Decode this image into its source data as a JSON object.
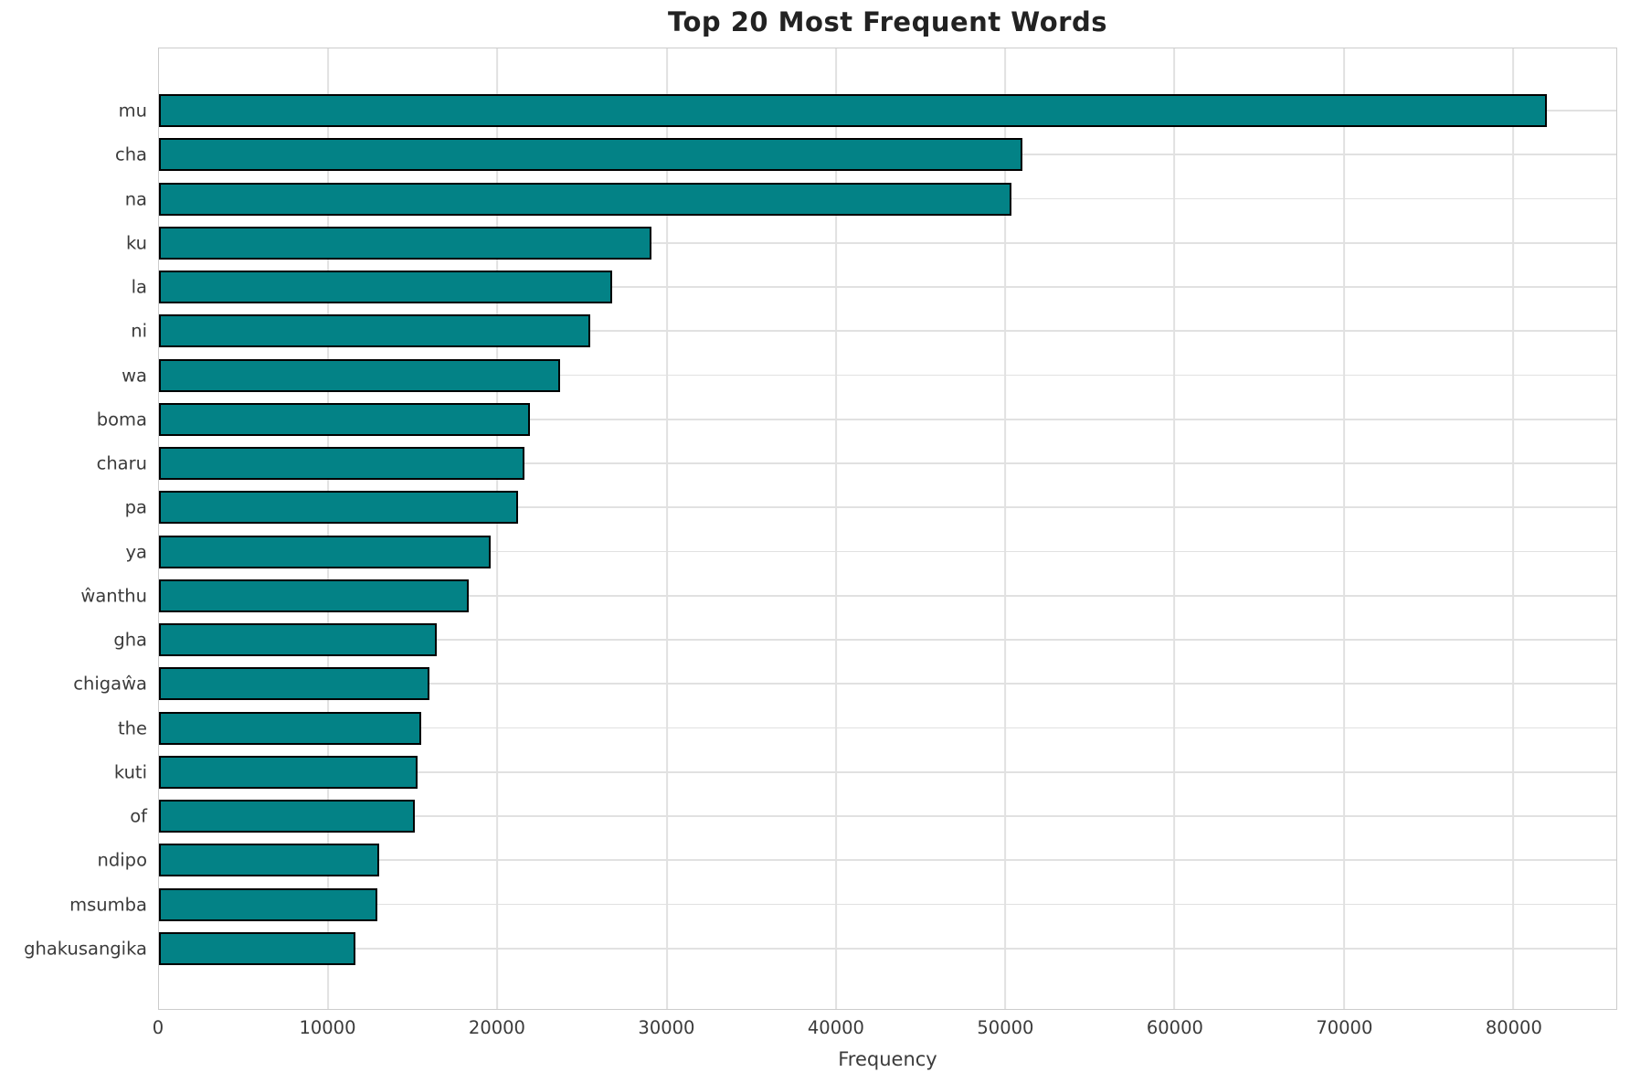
{
  "title": "Top 20 Most Frequent Words",
  "xlabel": "Frequency",
  "chart_data": {
    "type": "bar",
    "orientation": "horizontal",
    "title": "Top 20 Most Frequent Words",
    "xlabel": "Frequency",
    "ylabel": "",
    "categories": [
      "mu",
      "cha",
      "na",
      "ku",
      "la",
      "ni",
      "wa",
      "boma",
      "charu",
      "pa",
      "ya",
      "ŵanthu",
      "gha",
      "chigaŵa",
      "the",
      "kuti",
      "of",
      "ndipo",
      "msumba",
      "ghakusangika"
    ],
    "values": [
      82000,
      51000,
      50350,
      29100,
      26800,
      25500,
      23700,
      21900,
      21600,
      21200,
      19600,
      18300,
      16400,
      16000,
      15500,
      15300,
      15100,
      13000,
      12900,
      11600
    ],
    "xlim": [
      0,
      86100
    ],
    "xticks": [
      0,
      10000,
      20000,
      30000,
      40000,
      50000,
      60000,
      70000,
      80000
    ],
    "grid": "both",
    "legend": "none",
    "bar_color": "#038286",
    "bar_edge_color": "#000000"
  },
  "colors": {
    "background": "#ffffff",
    "grid": "#e1e1e1",
    "spine": "#cccccc",
    "tick_text": "#3b3b3b",
    "title_text": "#222222"
  }
}
